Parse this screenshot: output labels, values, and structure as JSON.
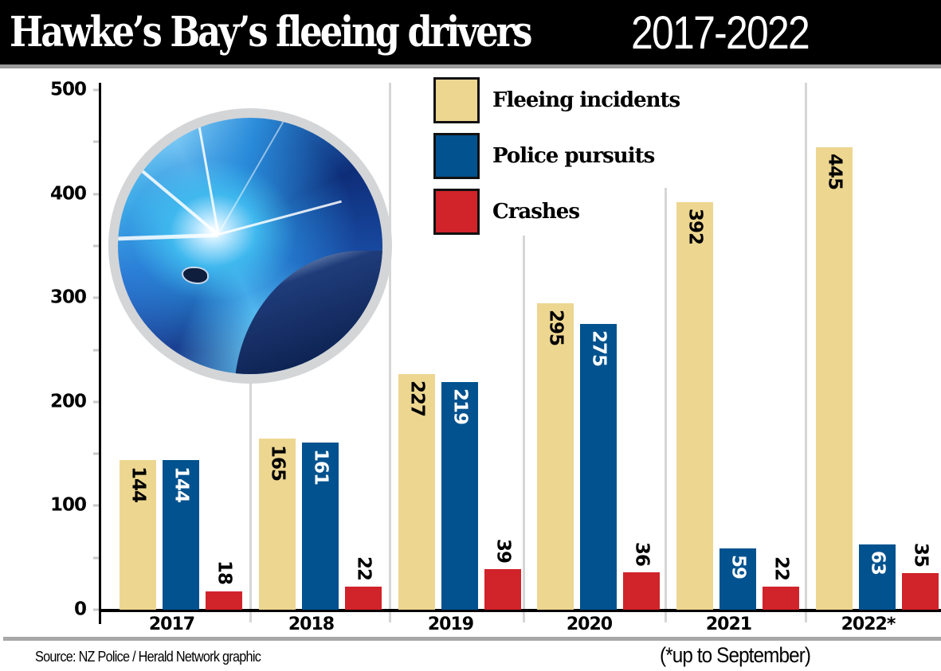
{
  "header": {
    "title_bold": "Hawke’s Bay’s fleeing drivers",
    "title_light": "2017-2022"
  },
  "legend": {
    "items": [
      {
        "label": "Fleeing incidents",
        "color": "#EDD690"
      },
      {
        "label": "Police pursuits",
        "color": "#02528F"
      },
      {
        "label": "Crashes",
        "color": "#D1232A"
      }
    ]
  },
  "y_axis": {
    "ticks": [
      "0",
      "100",
      "200",
      "300",
      "400",
      "500"
    ]
  },
  "x_axis": {
    "categories": [
      "2017",
      "2018",
      "2019",
      "2020",
      "2021",
      "2022*"
    ]
  },
  "values": {
    "fleeing": [
      "144",
      "165",
      "227",
      "295",
      "392",
      "445"
    ],
    "pursuits": [
      "144",
      "161",
      "219",
      "275",
      "59",
      "63"
    ],
    "crashes": [
      "18",
      "22",
      "39",
      "36",
      "22",
      "35"
    ]
  },
  "footer": {
    "source": "Source: NZ Police / Herald Network graphic",
    "footnote": "(*up to September)"
  },
  "illustration": {
    "icon": "speeding-car-photo-icon"
  },
  "chart_data": {
    "type": "bar",
    "title": "Hawke’s Bay’s fleeing drivers 2017-2022",
    "xlabel": "",
    "ylabel": "",
    "ylim": [
      0,
      500
    ],
    "yticks": [
      0,
      100,
      200,
      300,
      400,
      500
    ],
    "grid": false,
    "legend_position": "top-center",
    "categories": [
      "2017",
      "2018",
      "2019",
      "2020",
      "2021",
      "2022*"
    ],
    "series": [
      {
        "name": "Fleeing incidents",
        "color": "#EDD690",
        "values": [
          144,
          165,
          227,
          295,
          392,
          445
        ]
      },
      {
        "name": "Police pursuits",
        "color": "#02528F",
        "values": [
          144,
          161,
          219,
          275,
          59,
          63
        ]
      },
      {
        "name": "Crashes",
        "color": "#D1232A",
        "values": [
          18,
          22,
          39,
          36,
          22,
          35
        ]
      }
    ],
    "annotations": [
      "Source: NZ Police / Herald Network graphic",
      "(*up to September)"
    ]
  }
}
